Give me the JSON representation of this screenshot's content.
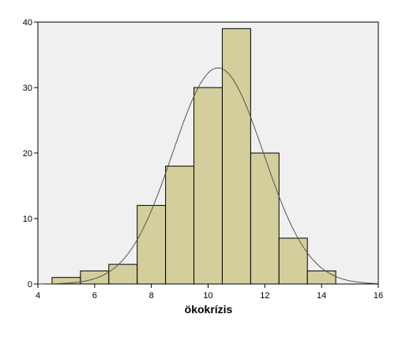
{
  "chart_data": {
    "type": "bar",
    "subtype": "histogram",
    "xlabel": "ökokrízis",
    "ylabel": "",
    "title": "",
    "xlim": [
      4,
      16
    ],
    "ylim": [
      0,
      40
    ],
    "x_ticks": [
      4,
      6,
      8,
      10,
      12,
      14,
      16
    ],
    "y_ticks": [
      0,
      10,
      20,
      30,
      40
    ],
    "bins": [
      {
        "start": 4.5,
        "end": 5.5,
        "count": 1
      },
      {
        "start": 5.5,
        "end": 6.5,
        "count": 2
      },
      {
        "start": 6.5,
        "end": 7.5,
        "count": 3
      },
      {
        "start": 7.5,
        "end": 8.5,
        "count": 12
      },
      {
        "start": 8.5,
        "end": 9.5,
        "count": 18
      },
      {
        "start": 9.5,
        "end": 10.5,
        "count": 30
      },
      {
        "start": 10.5,
        "end": 11.5,
        "count": 39
      },
      {
        "start": 11.5,
        "end": 12.5,
        "count": 20
      },
      {
        "start": 12.5,
        "end": 13.5,
        "count": 7
      },
      {
        "start": 13.5,
        "end": 14.5,
        "count": 2
      }
    ],
    "normal_curve": {
      "mean": 10.35,
      "sd": 1.6,
      "peak": 33
    },
    "grid": false,
    "colors": {
      "plot_background": "#f0f0f0",
      "bar_fill": "#d3ce9c",
      "bar_stroke": "#000000",
      "curve": "#555555"
    }
  }
}
